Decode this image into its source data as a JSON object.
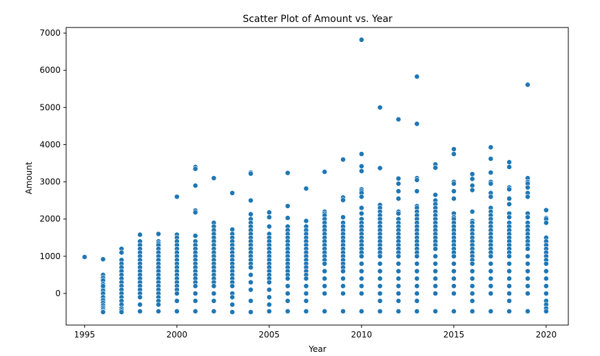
{
  "chart_data": {
    "type": "scatter",
    "title": "Scatter Plot of Amount vs. Year",
    "xlabel": "Year",
    "ylabel": "Amount",
    "xlim": [
      1994,
      2021.2
    ],
    "ylim": [
      -850,
      7150
    ],
    "x_ticks": [
      1995,
      2000,
      2005,
      2010,
      2015,
      2020
    ],
    "y_ticks": [
      0,
      1000,
      2000,
      3000,
      4000,
      5000,
      6000,
      7000
    ],
    "grid": false,
    "legend": "none",
    "marker_color": "#1f77b4",
    "x": [
      1995,
      1996,
      1996,
      1996,
      1996,
      1996,
      1996,
      1996,
      1996,
      1996,
      1996,
      1996,
      1996,
      1996,
      1996,
      1996,
      1996,
      1996,
      1997,
      1997,
      1997,
      1997,
      1997,
      1997,
      1997,
      1997,
      1997,
      1997,
      1997,
      1997,
      1997,
      1997,
      1997,
      1997,
      1997,
      1997,
      1998,
      1998,
      1998,
      1998,
      1998,
      1998,
      1998,
      1998,
      1998,
      1998,
      1998,
      1998,
      1998,
      1998,
      1998,
      1998,
      1998,
      1998,
      1998,
      1999,
      1999,
      1999,
      1999,
      1999,
      1999,
      1999,
      1999,
      1999,
      1999,
      1999,
      1999,
      1999,
      1999,
      1999,
      1999,
      1999,
      1999,
      1999,
      1999,
      1999,
      2000,
      2000,
      2000,
      2000,
      2000,
      2000,
      2000,
      2000,
      2000,
      2000,
      2000,
      2000,
      2000,
      2000,
      2000,
      2000,
      2000,
      2000,
      2000,
      2000,
      2001,
      2001,
      2001,
      2001,
      2001,
      2001,
      2001,
      2001,
      2001,
      2001,
      2001,
      2001,
      2001,
      2001,
      2001,
      2001,
      2001,
      2001,
      2001,
      2001,
      2001,
      2001,
      2002,
      2002,
      2002,
      2002,
      2002,
      2002,
      2002,
      2002,
      2002,
      2002,
      2002,
      2002,
      2002,
      2002,
      2002,
      2002,
      2002,
      2002,
      2002,
      2002,
      2002,
      2002,
      2003,
      2003,
      2003,
      2003,
      2003,
      2003,
      2003,
      2003,
      2003,
      2003,
      2003,
      2003,
      2003,
      2003,
      2003,
      2003,
      2003,
      2003,
      2003,
      2003,
      2003,
      2004,
      2004,
      2004,
      2004,
      2004,
      2004,
      2004,
      2004,
      2004,
      2004,
      2004,
      2004,
      2004,
      2004,
      2004,
      2004,
      2004,
      2004,
      2004,
      2004,
      2004,
      2004,
      2004,
      2005,
      2005,
      2005,
      2005,
      2005,
      2005,
      2005,
      2005,
      2005,
      2005,
      2005,
      2005,
      2005,
      2005,
      2005,
      2005,
      2005,
      2005,
      2005,
      2005,
      2005,
      2006,
      2006,
      2006,
      2006,
      2006,
      2006,
      2006,
      2006,
      2006,
      2006,
      2006,
      2006,
      2006,
      2006,
      2006,
      2006,
      2006,
      2006,
      2006,
      2006,
      2006,
      2006,
      2007,
      2007,
      2007,
      2007,
      2007,
      2007,
      2007,
      2007,
      2007,
      2007,
      2007,
      2007,
      2007,
      2007,
      2007,
      2007,
      2007,
      2007,
      2007,
      2007,
      2007,
      2008,
      2008,
      2008,
      2008,
      2008,
      2008,
      2008,
      2008,
      2008,
      2008,
      2008,
      2008,
      2008,
      2008,
      2008,
      2008,
      2008,
      2008,
      2008,
      2008,
      2008,
      2008,
      2009,
      2009,
      2009,
      2009,
      2009,
      2009,
      2009,
      2009,
      2009,
      2009,
      2009,
      2009,
      2009,
      2009,
      2009,
      2009,
      2009,
      2009,
      2009,
      2009,
      2009,
      2009,
      2010,
      2010,
      2010,
      2010,
      2010,
      2010,
      2010,
      2010,
      2010,
      2010,
      2010,
      2010,
      2010,
      2010,
      2010,
      2010,
      2010,
      2010,
      2010,
      2010,
      2010,
      2010,
      2010,
      2010,
      2010,
      2010,
      2010,
      2011,
      2011,
      2011,
      2011,
      2011,
      2011,
      2011,
      2011,
      2011,
      2011,
      2011,
      2011,
      2011,
      2011,
      2011,
      2011,
      2011,
      2011,
      2011,
      2011,
      2011,
      2011,
      2011,
      2011,
      2012,
      2012,
      2012,
      2012,
      2012,
      2012,
      2012,
      2012,
      2012,
      2012,
      2012,
      2012,
      2012,
      2012,
      2012,
      2012,
      2012,
      2012,
      2012,
      2012,
      2012,
      2012,
      2012,
      2012,
      2012,
      2013,
      2013,
      2013,
      2013,
      2013,
      2013,
      2013,
      2013,
      2013,
      2013,
      2013,
      2013,
      2013,
      2013,
      2013,
      2013,
      2013,
      2013,
      2013,
      2013,
      2013,
      2013,
      2013,
      2013,
      2013,
      2013,
      2013,
      2014,
      2014,
      2014,
      2014,
      2014,
      2014,
      2014,
      2014,
      2014,
      2014,
      2014,
      2014,
      2014,
      2014,
      2014,
      2014,
      2014,
      2014,
      2014,
      2014,
      2014,
      2014,
      2014,
      2014,
      2015,
      2015,
      2015,
      2015,
      2015,
      2015,
      2015,
      2015,
      2015,
      2015,
      2015,
      2015,
      2015,
      2015,
      2015,
      2015,
      2015,
      2015,
      2015,
      2015,
      2015,
      2015,
      2015,
      2015,
      2015,
      2016,
      2016,
      2016,
      2016,
      2016,
      2016,
      2016,
      2016,
      2016,
      2016,
      2016,
      2016,
      2016,
      2016,
      2016,
      2016,
      2016,
      2016,
      2016,
      2016,
      2016,
      2016,
      2016,
      2016,
      2017,
      2017,
      2017,
      2017,
      2017,
      2017,
      2017,
      2017,
      2017,
      2017,
      2017,
      2017,
      2017,
      2017,
      2017,
      2017,
      2017,
      2017,
      2017,
      2017,
      2017,
      2017,
      2017,
      2017,
      2017,
      2017,
      2017,
      2018,
      2018,
      2018,
      2018,
      2018,
      2018,
      2018,
      2018,
      2018,
      2018,
      2018,
      2018,
      2018,
      2018,
      2018,
      2018,
      2018,
      2018,
      2018,
      2018,
      2018,
      2018,
      2018,
      2018,
      2018,
      2019,
      2019,
      2019,
      2019,
      2019,
      2019,
      2019,
      2019,
      2019,
      2019,
      2019,
      2019,
      2019,
      2019,
      2019,
      2019,
      2019,
      2019,
      2019,
      2019,
      2019,
      2019,
      2019,
      2019,
      2020,
      2020,
      2020,
      2020,
      2020,
      2020,
      2020,
      2020,
      2020,
      2020,
      2020,
      2020,
      2020,
      2020,
      2020,
      2020,
      2020,
      2020,
      2020,
      2020
    ],
    "y": [
      980,
      920,
      500,
      420,
      350,
      250,
      150,
      80,
      0,
      -100,
      -180,
      -250,
      -320,
      -380,
      -430,
      -480,
      -500,
      200,
      1200,
      1100,
      900,
      800,
      700,
      600,
      500,
      400,
      300,
      200,
      100,
      0,
      -100,
      -200,
      -300,
      -400,
      -450,
      -500,
      1580,
      1400,
      1300,
      1200,
      1100,
      1000,
      900,
      800,
      700,
      600,
      500,
      400,
      300,
      200,
      100,
      0,
      -100,
      -300,
      -480,
      1600,
      1400,
      1350,
      1300,
      1200,
      1100,
      1000,
      900,
      800,
      700,
      600,
      500,
      400,
      300,
      200,
      100,
      0,
      -100,
      -200,
      -300,
      -480,
      2600,
      1580,
      1500,
      1400,
      1300,
      1200,
      1100,
      1000,
      900,
      800,
      700,
      600,
      500,
      400,
      300,
      200,
      100,
      0,
      -200,
      -480,
      3400,
      3350,
      2900,
      2230,
      2180,
      1550,
      1400,
      1300,
      1200,
      1100,
      1000,
      900,
      800,
      700,
      600,
      500,
      400,
      300,
      200,
      0,
      -200,
      -480,
      3100,
      1900,
      1800,
      1700,
      1600,
      1500,
      1400,
      1300,
      1200,
      1100,
      1000,
      900,
      800,
      700,
      600,
      500,
      400,
      300,
      200,
      0,
      -200,
      -480,
      2700,
      1720,
      1600,
      1500,
      1400,
      1300,
      1200,
      1100,
      1000,
      900,
      800,
      700,
      600,
      500,
      400,
      300,
      200,
      0,
      -100,
      -300,
      -500,
      3250,
      3220,
      2500,
      2130,
      2000,
      1900,
      1800,
      1700,
      1600,
      1500,
      1400,
      1300,
      1200,
      1100,
      1000,
      900,
      800,
      700,
      500,
      300,
      100,
      -200,
      -500,
      2180,
      2050,
      1800,
      1600,
      1500,
      1400,
      1300,
      1200,
      1100,
      1000,
      900,
      800,
      700,
      600,
      500,
      400,
      300,
      100,
      -100,
      -300,
      -480,
      3240,
      2350,
      2030,
      1800,
      1700,
      1600,
      1500,
      1400,
      1300,
      1200,
      1100,
      1000,
      900,
      800,
      700,
      600,
      500,
      400,
      200,
      0,
      -200,
      -480,
      2820,
      1950,
      1800,
      1700,
      1600,
      1500,
      1400,
      1300,
      1200,
      1100,
      1000,
      900,
      800,
      700,
      600,
      500,
      400,
      200,
      0,
      -200,
      -480,
      3270,
      2200,
      2150,
      2100,
      2000,
      1900,
      1800,
      1700,
      1600,
      1500,
      1400,
      1300,
      1200,
      1100,
      1000,
      900,
      800,
      600,
      400,
      200,
      0,
      -480,
      3600,
      2580,
      2510,
      2050,
      1900,
      1800,
      1700,
      1600,
      1500,
      1400,
      1300,
      1200,
      1100,
      1000,
      900,
      800,
      700,
      600,
      400,
      200,
      0,
      -480,
      6820,
      3750,
      3420,
      3290,
      2800,
      2750,
      2700,
      2600,
      2300,
      2150,
      2000,
      1900,
      1800,
      1700,
      1600,
      1500,
      1400,
      1300,
      1200,
      1100,
      1000,
      800,
      600,
      400,
      200,
      0,
      -480,
      5000,
      3370,
      2380,
      2300,
      2200,
      2100,
      2000,
      1900,
      1800,
      1700,
      1600,
      1500,
      1400,
      1300,
      1200,
      1100,
      1000,
      800,
      600,
      400,
      200,
      0,
      -200,
      -480,
      4680,
      3090,
      2950,
      2750,
      2550,
      2200,
      2150,
      2000,
      1900,
      1800,
      1700,
      1600,
      1500,
      1400,
      1300,
      1200,
      1100,
      1000,
      800,
      600,
      400,
      200,
      0,
      -200,
      -480,
      5830,
      4560,
      3100,
      3050,
      2750,
      2350,
      2300,
      2200,
      2100,
      2000,
      1900,
      1800,
      1700,
      1600,
      1500,
      1400,
      1300,
      1200,
      1100,
      1000,
      800,
      600,
      400,
      200,
      0,
      -200,
      -480,
      3470,
      3380,
      2650,
      2500,
      2400,
      2300,
      2200,
      2100,
      2000,
      1900,
      1800,
      1700,
      1600,
      1500,
      1400,
      1300,
      1200,
      1000,
      800,
      600,
      400,
      200,
      0,
      -480,
      3880,
      3750,
      3000,
      2950,
      2750,
      2550,
      2150,
      2050,
      2000,
      1900,
      1800,
      1700,
      1600,
      1500,
      1400,
      1300,
      1200,
      1100,
      1000,
      800,
      600,
      400,
      200,
      0,
      -480,
      3210,
      3080,
      2900,
      2780,
      2200,
      1950,
      1900,
      1800,
      1700,
      1600,
      1500,
      1400,
      1300,
      1200,
      1100,
      1000,
      900,
      800,
      600,
      400,
      200,
      0,
      -200,
      -480,
      3930,
      3620,
      3250,
      3000,
      2950,
      2700,
      2600,
      2300,
      2200,
      2100,
      2000,
      1900,
      1800,
      1700,
      1600,
      1500,
      1400,
      1300,
      1200,
      1100,
      1000,
      800,
      600,
      400,
      200,
      0,
      -480,
      3530,
      3400,
      2850,
      2800,
      2550,
      2400,
      2150,
      2050,
      1900,
      1800,
      1700,
      1600,
      1500,
      1400,
      1300,
      1200,
      1100,
      1000,
      800,
      600,
      400,
      200,
      0,
      -200,
      -480,
      5610,
      3100,
      3000,
      2950,
      2850,
      2700,
      2600,
      2150,
      2050,
      1900,
      1800,
      1700,
      1600,
      1500,
      1400,
      1300,
      1200,
      1000,
      800,
      600,
      400,
      200,
      0,
      -480,
      2240,
      2030,
      2000,
      1900,
      1500,
      1400,
      1300,
      1200,
      1100,
      1000,
      900,
      800,
      600,
      400,
      200,
      0,
      -200,
      -300,
      -400,
      -480
    ]
  }
}
